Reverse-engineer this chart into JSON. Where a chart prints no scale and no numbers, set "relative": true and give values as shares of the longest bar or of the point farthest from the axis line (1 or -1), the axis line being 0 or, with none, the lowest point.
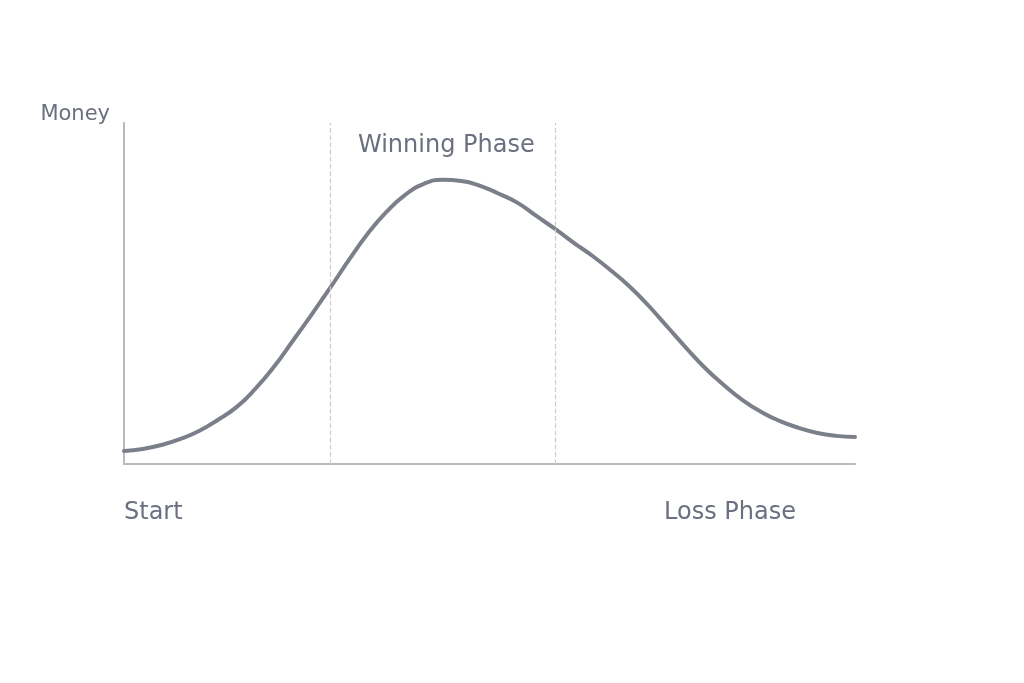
{
  "chart_data": {
    "type": "line",
    "relative": true,
    "ylabel": "Money",
    "annotations": [
      "Winning Phase",
      "Start",
      "Loss Phase"
    ],
    "categories": [
      null,
      null,
      null,
      null,
      null,
      null,
      null,
      null,
      null,
      null,
      null,
      null,
      null,
      null,
      null,
      null,
      null,
      null,
      null,
      null,
      null,
      null,
      null,
      null,
      null,
      null,
      null,
      null,
      null,
      null,
      null,
      null,
      null,
      null,
      null,
      null,
      null,
      null,
      null,
      null
    ],
    "series": [
      {
        "color": "#7b7f8a",
        "values": [
          0.046,
          0.053,
          0.067,
          0.088,
          0.116,
          0.155,
          0.2,
          0.264,
          0.342,
          0.433,
          0.525,
          0.62,
          0.718,
          0.81,
          0.887,
          0.947,
          0.986,
          1,
          0.996,
          0.979,
          0.951,
          0.919,
          0.873,
          0.827,
          0.778,
          0.732,
          0.68,
          0.623,
          0.556,
          0.482,
          0.408,
          0.338,
          0.278,
          0.225,
          0.183,
          0.151,
          0.127,
          0.109,
          0.099,
          0.095
        ]
      }
    ],
    "grid": false,
    "marker": "none",
    "line_style": "solid"
  }
}
